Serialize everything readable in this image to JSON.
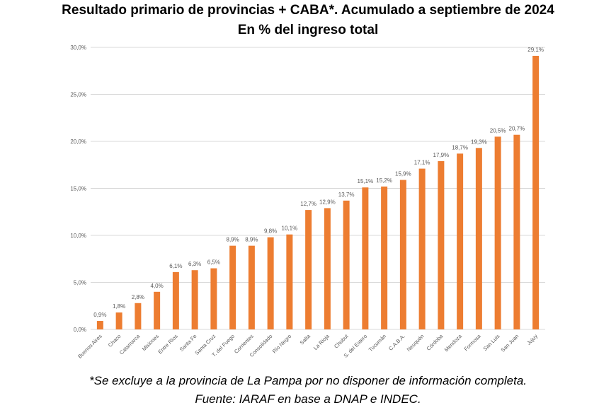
{
  "title": "Resultado primario de provincias + CABA*. Acumulado a septiembre de 2024",
  "subtitle": "En % del ingreso total",
  "footnote": "*Se excluye a la provincia de La Pampa por no disponer de información completa.",
  "source": "Fuente: IARAF en base a DNAP e INDEC.",
  "colors": {
    "bar": "#ED7D31",
    "grid": "#D9D9D9",
    "axis_text": "#595959"
  },
  "chart_data": {
    "type": "bar",
    "title": "Resultado primario de provincias + CABA*. Acumulado a septiembre de 2024",
    "subtitle": "En % del ingreso total",
    "xlabel": "",
    "ylabel": "",
    "ylim": [
      0,
      30
    ],
    "yticks": [
      0,
      5,
      10,
      15,
      20,
      25,
      30
    ],
    "ytick_labels": [
      "0,0%",
      "5,0%",
      "10,0%",
      "15,0%",
      "20,0%",
      "25,0%",
      "30,0%"
    ],
    "grid": true,
    "legend": "none",
    "categories": [
      "Buenos Aires",
      "Chaco",
      "Catamarca",
      "Misiones",
      "Entre Ríos",
      "Santa Fe",
      "Santa Cruz",
      "T. del Fuego",
      "Corrientes",
      "Consolidado",
      "Río Negro",
      "Salta",
      "La Rioja",
      "Chubut",
      "S. del Estero",
      "Tucumán",
      "C.A.B.A.",
      "Neuquén",
      "Córdoba",
      "Mendoza",
      "Formosa",
      "San Luis",
      "San Juan",
      "Jujuy"
    ],
    "values": [
      0.9,
      1.8,
      2.8,
      4.0,
      6.1,
      6.3,
      6.5,
      8.9,
      8.9,
      9.8,
      10.1,
      12.7,
      12.9,
      13.7,
      15.1,
      15.2,
      15.9,
      17.1,
      17.9,
      18.7,
      19.3,
      20.5,
      20.7,
      29.1
    ],
    "value_labels": [
      "0,9%",
      "1,8%",
      "2,8%",
      "4,0%",
      "6,1%",
      "6,3%",
      "6,5%",
      "8,9%",
      "8,9%",
      "9,8%",
      "10,1%",
      "12,7%",
      "12,9%",
      "13,7%",
      "15,1%",
      "15,2%",
      "15,9%",
      "17,1%",
      "17,9%",
      "18,7%",
      "19,3%",
      "20,5%",
      "20,7%",
      "29,1%"
    ]
  }
}
